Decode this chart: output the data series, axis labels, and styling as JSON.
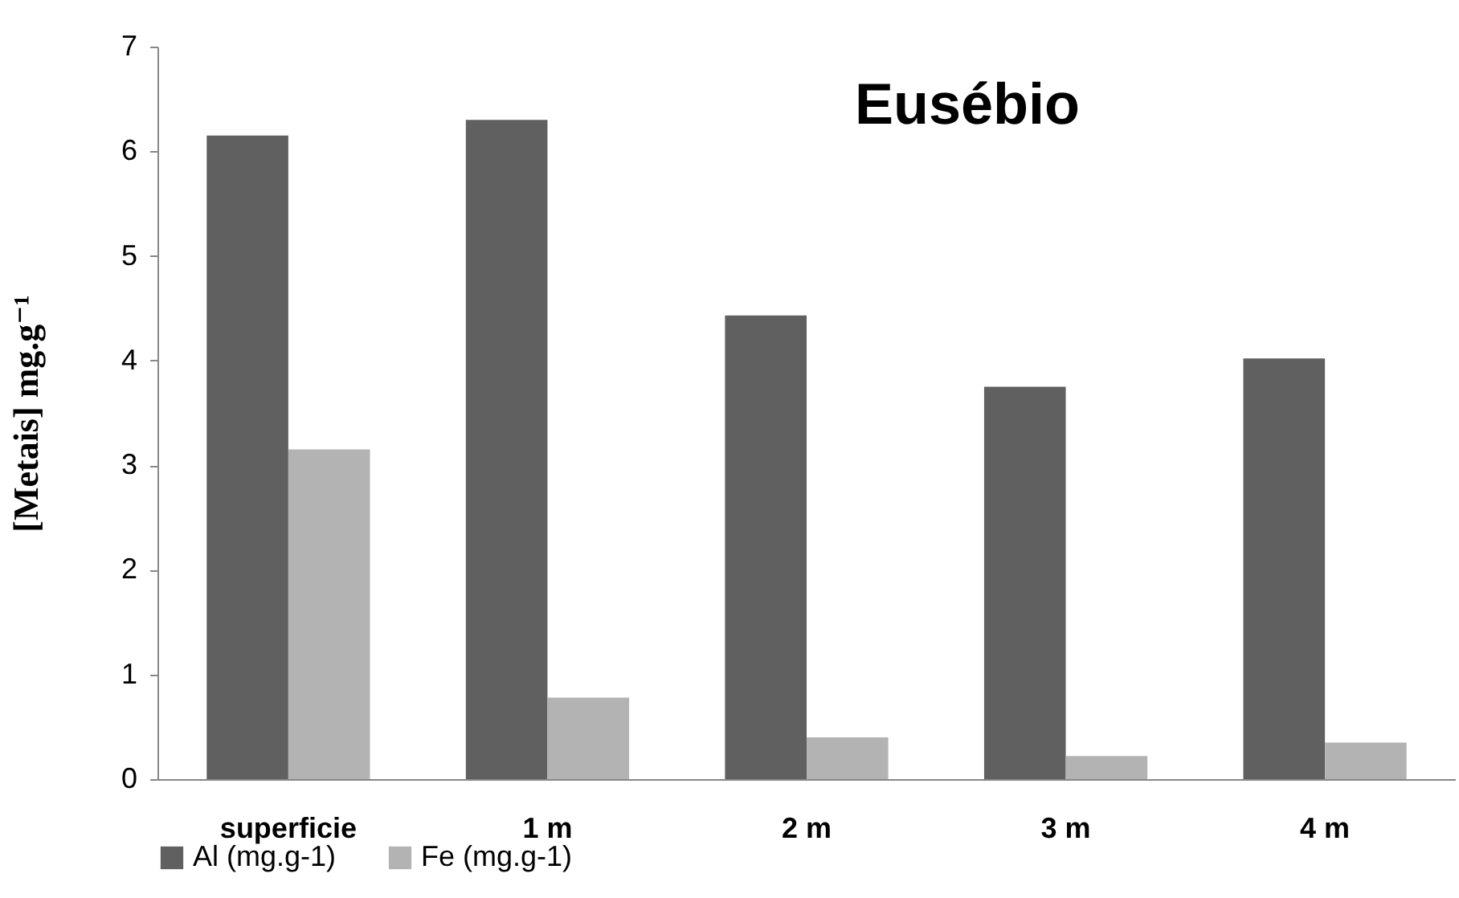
{
  "chart_data": {
    "type": "bar",
    "title": "Eusébio",
    "ylabel": "[Metais] mg.g⁻¹",
    "categories": [
      "superficie",
      "1 m",
      "2 m",
      "3 m",
      "4 m"
    ],
    "series": [
      {
        "name": "Al (mg.g-1)",
        "color": "#606060",
        "values": [
          6.15,
          6.3,
          4.43,
          3.75,
          4.02
        ]
      },
      {
        "name": "Fe (mg.g-1)",
        "color": "#b3b3b3",
        "values": [
          3.15,
          0.78,
          0.4,
          0.22,
          0.35
        ]
      }
    ],
    "ylim": [
      0,
      7
    ],
    "yticks": [
      0,
      1,
      2,
      3,
      4,
      5,
      6,
      7
    ],
    "grid": false,
    "legend": "bottom"
  }
}
